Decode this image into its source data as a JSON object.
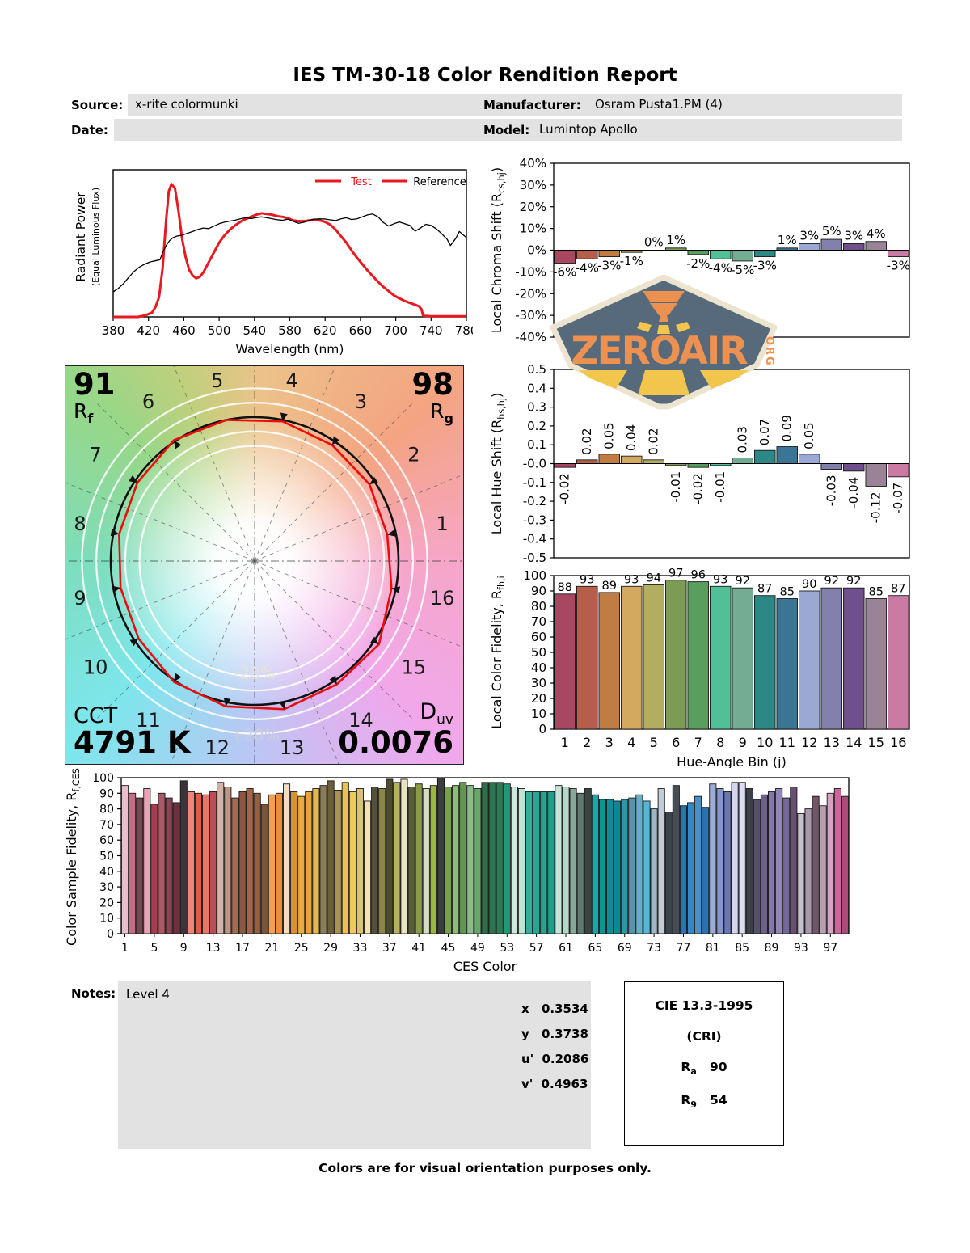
{
  "title": "IES TM-30-18 Color Rendition Report",
  "header": {
    "source_label": "Source:",
    "source_value": "x-rite colormunki",
    "date_label": "Date:",
    "date_value": "",
    "manufacturer_label": "Manufacturer:",
    "manufacturer_value": "Osram Pusta1.PM (4)",
    "model_label": "Model:",
    "model_value": "Lumintop Apollo"
  },
  "watermark": {
    "text": "ZEROAIR",
    "org": "ORG"
  },
  "cvg": {
    "rf_value": "91",
    "rf_letter": "R",
    "rf_sub": "f",
    "rg_value": "98",
    "rg_letter": "R",
    "rg_sub": "g",
    "cct_label": "CCT",
    "cct_value": "4791 K",
    "duv_letter": "D",
    "duv_sub": "uv",
    "duv_value": "0.0076",
    "outer_ring_label": "+20%",
    "inner_ring_label": "-20%"
  },
  "notes": {
    "label": "Notes:",
    "value": "Level 4"
  },
  "chromaticity": {
    "rows": [
      {
        "label": "x",
        "value": "0.3534"
      },
      {
        "label": "y",
        "value": "0.3738"
      },
      {
        "label": "u'",
        "value": "0.2086"
      },
      {
        "label": "v'",
        "value": "0.4963"
      }
    ]
  },
  "cri_box": {
    "title": "CIE 13.3-1995",
    "subtitle": "(CRI)",
    "ra_letter": "R",
    "ra_sub": "a",
    "ra_value": "90",
    "r9_letter": "R",
    "r9_sub": "9",
    "r9_value": "54"
  },
  "footer": "Colors are for visual orientation purposes only.",
  "bin_colors": [
    "#a84860",
    "#b55e49",
    "#c07c43",
    "#d3a95f",
    "#b3ad62",
    "#7d9c53",
    "#589e5f",
    "#52c096",
    "#74ab93",
    "#2c8884",
    "#3b7596",
    "#9aa9d4",
    "#8280ac",
    "#6f4f8c",
    "#9b8397",
    "#c97ba3"
  ],
  "chart_data": [
    {
      "name": "spectral_power_distribution",
      "type": "line",
      "xlabel": "Wavelength (nm)",
      "ylabel_line1": "Radiant Power",
      "ylabel_line2": "(Equal Luminous Flux)",
      "xlim": [
        380,
        780
      ],
      "xticks": [
        380,
        420,
        460,
        500,
        540,
        580,
        620,
        660,
        700,
        740,
        780
      ],
      "legend": [
        {
          "label": "Test",
          "color": "#e8191f"
        },
        {
          "label": "Reference",
          "color": "#000000"
        }
      ],
      "series": [
        {
          "name": "Test",
          "color": "#e8191f",
          "width": 3,
          "points": [
            [
              380,
              0
            ],
            [
              408,
              0
            ],
            [
              416,
              0.01
            ],
            [
              424,
              0.03
            ],
            [
              428,
              0.07
            ],
            [
              432,
              0.14
            ],
            [
              436,
              0.34
            ],
            [
              440,
              0.68
            ],
            [
              443,
              0.88
            ],
            [
              446,
              0.93
            ],
            [
              450,
              0.9
            ],
            [
              454,
              0.74
            ],
            [
              458,
              0.55
            ],
            [
              462,
              0.42
            ],
            [
              466,
              0.33
            ],
            [
              470,
              0.29
            ],
            [
              474,
              0.27
            ],
            [
              478,
              0.28
            ],
            [
              482,
              0.31
            ],
            [
              488,
              0.38
            ],
            [
              494,
              0.45
            ],
            [
              500,
              0.52
            ],
            [
              506,
              0.57
            ],
            [
              512,
              0.61
            ],
            [
              518,
              0.64
            ],
            [
              524,
              0.665
            ],
            [
              530,
              0.685
            ],
            [
              536,
              0.7
            ],
            [
              542,
              0.715
            ],
            [
              548,
              0.725
            ],
            [
              554,
              0.72
            ],
            [
              560,
              0.715
            ],
            [
              566,
              0.705
            ],
            [
              572,
              0.7
            ],
            [
              578,
              0.69
            ],
            [
              584,
              0.675
            ],
            [
              590,
              0.67
            ],
            [
              596,
              0.67
            ],
            [
              602,
              0.675
            ],
            [
              608,
              0.68
            ],
            [
              614,
              0.675
            ],
            [
              620,
              0.665
            ],
            [
              626,
              0.645
            ],
            [
              632,
              0.61
            ],
            [
              638,
              0.565
            ],
            [
              644,
              0.52
            ],
            [
              650,
              0.465
            ],
            [
              656,
              0.415
            ],
            [
              662,
              0.37
            ],
            [
              668,
              0.325
            ],
            [
              674,
              0.285
            ],
            [
              680,
              0.245
            ],
            [
              686,
              0.21
            ],
            [
              692,
              0.18
            ],
            [
              698,
              0.15
            ],
            [
              704,
              0.13
            ],
            [
              710,
              0.112
            ],
            [
              716,
              0.098
            ],
            [
              722,
              0.085
            ],
            [
              726,
              0.075
            ],
            [
              729,
              0.055
            ],
            [
              731,
              0.008
            ],
            [
              740,
              0.004
            ],
            [
              780,
              0.004
            ]
          ]
        },
        {
          "name": "Reference",
          "color": "#000000",
          "width": 1.3,
          "points": [
            [
              380,
              0.175
            ],
            [
              386,
              0.2
            ],
            [
              392,
              0.235
            ],
            [
              398,
              0.28
            ],
            [
              404,
              0.32
            ],
            [
              410,
              0.35
            ],
            [
              416,
              0.37
            ],
            [
              422,
              0.385
            ],
            [
              428,
              0.393
            ],
            [
              433,
              0.4
            ],
            [
              436,
              0.45
            ],
            [
              440,
              0.5
            ],
            [
              444,
              0.535
            ],
            [
              448,
              0.555
            ],
            [
              452,
              0.565
            ],
            [
              458,
              0.572
            ],
            [
              464,
              0.585
            ],
            [
              470,
              0.598
            ],
            [
              476,
              0.612
            ],
            [
              482,
              0.622
            ],
            [
              488,
              0.618
            ],
            [
              494,
              0.635
            ],
            [
              500,
              0.652
            ],
            [
              506,
              0.663
            ],
            [
              512,
              0.67
            ],
            [
              518,
              0.677
            ],
            [
              524,
              0.686
            ],
            [
              530,
              0.694
            ],
            [
              536,
              0.688
            ],
            [
              542,
              0.695
            ],
            [
              548,
              0.7
            ],
            [
              554,
              0.694
            ],
            [
              560,
              0.687
            ],
            [
              566,
              0.68
            ],
            [
              572,
              0.676
            ],
            [
              578,
              0.684
            ],
            [
              584,
              0.668
            ],
            [
              590,
              0.655
            ],
            [
              596,
              0.662
            ],
            [
              602,
              0.676
            ],
            [
              608,
              0.684
            ],
            [
              614,
              0.686
            ],
            [
              620,
              0.685
            ],
            [
              626,
              0.679
            ],
            [
              632,
              0.674
            ],
            [
              638,
              0.686
            ],
            [
              644,
              0.694
            ],
            [
              650,
              0.681
            ],
            [
              656,
              0.686
            ],
            [
              662,
              0.7
            ],
            [
              668,
              0.714
            ],
            [
              674,
              0.72
            ],
            [
              680,
              0.7
            ],
            [
              686,
              0.66
            ],
            [
              692,
              0.636
            ],
            [
              698,
              0.652
            ],
            [
              704,
              0.664
            ],
            [
              710,
              0.652
            ],
            [
              716,
              0.64
            ],
            [
              722,
              0.6
            ],
            [
              728,
              0.622
            ],
            [
              734,
              0.648
            ],
            [
              740,
              0.64
            ],
            [
              746,
              0.616
            ],
            [
              752,
              0.582
            ],
            [
              758,
              0.545
            ],
            [
              762,
              0.5
            ],
            [
              768,
              0.55
            ],
            [
              772,
              0.598
            ],
            [
              776,
              0.576
            ],
            [
              780,
              0.556
            ]
          ]
        }
      ]
    },
    {
      "name": "local_chroma_shift",
      "type": "bar",
      "ylabel": [
        {
          "t": "Local Chroma Shift (R"
        },
        {
          "t": "cs,hj",
          "sub": true
        },
        {
          "t": ")"
        }
      ],
      "ylim": [
        -40,
        40
      ],
      "ytick_step": 10,
      "ytick_suffix": "%",
      "values": [
        -6,
        -4,
        -3,
        -1,
        0,
        1,
        -2,
        -4,
        -5,
        -3,
        1,
        3,
        5,
        3,
        4,
        -3
      ],
      "labels": [
        "-6%",
        "-4%",
        "-3%",
        "-1%",
        "0%",
        "1%",
        "-2%",
        "-4%",
        "-5%",
        "-3%",
        "1%",
        "3%",
        "5%",
        "3%",
        "4%",
        "-3%"
      ]
    },
    {
      "name": "local_hue_shift",
      "type": "bar",
      "ylabel": [
        {
          "t": "Local Hue Shift (R"
        },
        {
          "t": "hs,hj",
          "sub": true
        },
        {
          "t": ")"
        }
      ],
      "ylim": [
        -0.5,
        0.5
      ],
      "ytick_step": 0.1,
      "values": [
        -0.02,
        0.02,
        0.05,
        0.04,
        0.02,
        -0.01,
        -0.02,
        -0.01,
        0.03,
        0.07,
        0.09,
        0.05,
        -0.03,
        -0.04,
        -0.12,
        -0.07
      ],
      "labels": [
        "-0.02",
        "0.02",
        "0.05",
        "0.04",
        "0.02",
        "-0.01",
        "-0.02",
        "-0.01",
        "0.03",
        "0.07",
        "0.09",
        "0.05",
        "-0.03",
        "-0.04",
        "-0.12",
        "-0.07"
      ]
    },
    {
      "name": "local_color_fidelity",
      "type": "bar",
      "ylabel": [
        {
          "t": "Local Color Fidelity, R"
        },
        {
          "t": "fh,i",
          "sub": true
        }
      ],
      "xlabel": "Hue-Angle Bin (j)",
      "ylim": [
        0,
        100
      ],
      "ytick_step": 10,
      "categories": [
        1,
        2,
        3,
        4,
        5,
        6,
        7,
        8,
        9,
        10,
        11,
        12,
        13,
        14,
        15,
        16
      ],
      "values": [
        88,
        93,
        89,
        93,
        94,
        97,
        96,
        93,
        92,
        87,
        85,
        90,
        92,
        92,
        85,
        87
      ]
    },
    {
      "name": "color_sample_fidelity",
      "type": "bar",
      "ylabel": [
        {
          "t": "Color Sample Fidelity, R"
        },
        {
          "t": "f,CESi",
          "sub": true
        }
      ],
      "xlabel": "CES Color",
      "ylim": [
        0,
        100
      ],
      "ytick_step": 10,
      "xticks": [
        1,
        5,
        9,
        13,
        17,
        21,
        25,
        29,
        33,
        37,
        41,
        45,
        49,
        53,
        57,
        61,
        65,
        69,
        73,
        77,
        81,
        85,
        89,
        93,
        97
      ],
      "values": [
        95,
        90,
        87,
        93,
        83,
        90,
        87,
        84,
        98,
        91,
        90,
        89,
        91,
        97,
        94,
        87,
        91,
        93,
        90,
        83,
        89,
        90,
        96,
        91,
        88,
        91,
        93,
        95,
        98,
        92,
        97,
        91,
        93,
        85,
        94,
        93,
        99,
        97,
        99,
        94,
        96,
        93,
        95,
        100,
        94,
        95,
        97,
        95,
        93,
        97,
        97,
        97,
        96,
        94,
        93,
        91,
        91,
        91,
        91,
        95,
        94,
        93,
        90,
        93,
        89,
        86,
        86,
        85,
        86,
        87,
        89,
        85,
        80,
        93,
        78,
        95,
        82,
        84,
        88,
        81,
        96,
        93,
        91,
        97,
        97,
        93,
        86,
        89,
        91,
        93,
        87,
        94,
        77,
        80,
        88,
        82,
        90,
        93,
        88
      ],
      "colors": [
        "#ecbdca",
        "#c66d86",
        "#74484f",
        "#e8a3b7",
        "#a93b50",
        "#a85a67",
        "#8c4452",
        "#703040",
        "#3b3539",
        "#f28472",
        "#e25a49",
        "#e5786a",
        "#b94f55",
        "#d4b3ab",
        "#c09486",
        "#a06c52",
        "#8a5a40",
        "#a5644a",
        "#936040",
        "#7d5438",
        "#f0a055",
        "#e88f3e",
        "#f3ddc2",
        "#da8f30",
        "#e8ab42",
        "#e8a23c",
        "#e3b84e",
        "#8a7d5c",
        "#6b5f3a",
        "#a59456",
        "#eec04e",
        "#f0ca56",
        "#d9c178",
        "#efe3ae",
        "#55503a",
        "#8a8648",
        "#4e4a30",
        "#b5b163",
        "#e8e4c0",
        "#5a5c3c",
        "#8a9a4a",
        "#d8dcc0",
        "#9ab83c",
        "#3a3d3a",
        "#77a055",
        "#8fbc7a",
        "#5d9a4e",
        "#90b890",
        "#6aa86a",
        "#2f6e4a",
        "#2f7450",
        "#2e7852",
        "#1f9a78",
        "#cfe8dc",
        "#c2e2d4",
        "#32b09a",
        "#28a894",
        "#24a491",
        "#1f9e8c",
        "#c6e4d8",
        "#b4d8c8",
        "#8aa89a",
        "#5c7a70",
        "#3a4440",
        "#18a8a8",
        "#0f9494",
        "#0d8e96",
        "#0b8892",
        "#2d96a6",
        "#5a94a8",
        "#6aacc2",
        "#56b6d8",
        "#9cb8c8",
        "#c2ccd6",
        "#3a444c",
        "#454e56",
        "#2278b4",
        "#2f88c8",
        "#4a90c4",
        "#2a72b0",
        "#9cacd8",
        "#8496cc",
        "#6a78b8",
        "#d4d6ee",
        "#dcdcf2",
        "#3c4048",
        "#56506c",
        "#6a6088",
        "#8478a8",
        "#9486b4",
        "#746898",
        "#685070",
        "#c4c0cc",
        "#a898ac",
        "#705868",
        "#b8a0b0",
        "#d8a2c2",
        "#c9679a",
        "#ad4a77"
      ]
    },
    {
      "name": "color_vector_graphic",
      "type": "polar",
      "rf": 91,
      "rg": 98,
      "cct": "4791 K",
      "duv": "0.0076",
      "bins": [
        1,
        2,
        3,
        4,
        5,
        6,
        7,
        8,
        9,
        10,
        11,
        12,
        13,
        14,
        15,
        16
      ],
      "rcs_percent": [
        -6,
        -4,
        -3,
        -1,
        0,
        1,
        -2,
        -4,
        -5,
        -3,
        1,
        3,
        5,
        3,
        4,
        -3
      ],
      "rings": [
        0.8,
        0.9,
        1.1,
        1.2
      ]
    }
  ]
}
